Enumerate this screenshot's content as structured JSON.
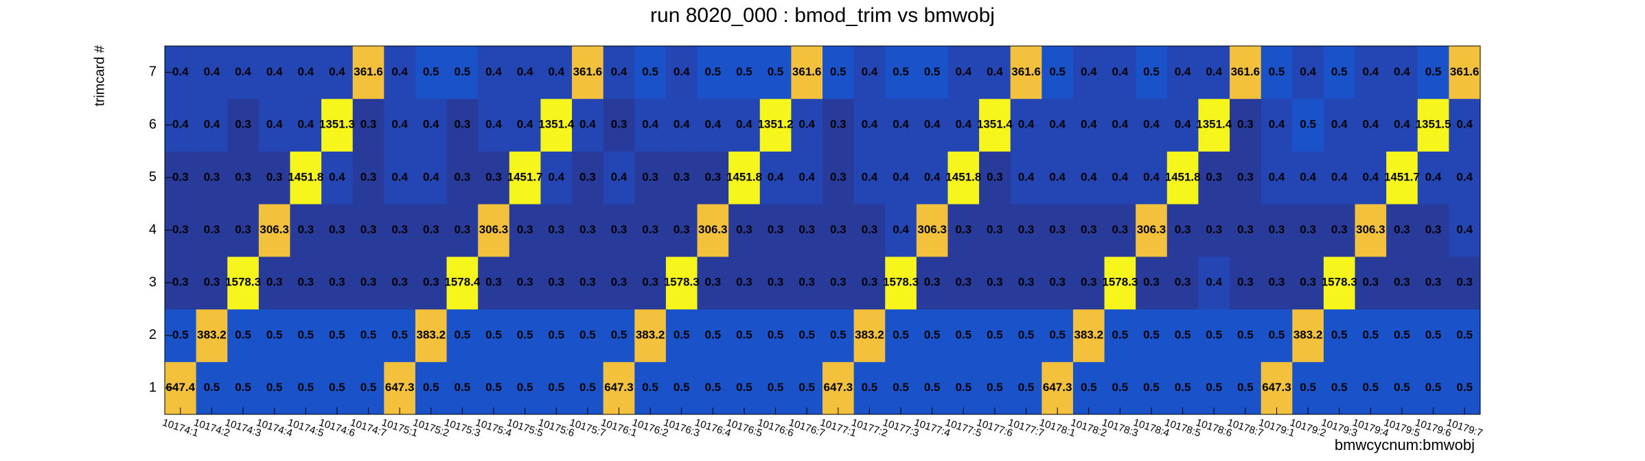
{
  "chart_data": {
    "type": "heatmap",
    "title": "run 8020_000 : bmod_trim vs bmwobj",
    "x_label": "bmwcycnum:bmwobj",
    "y_label": "trimcard #",
    "x_categories": [
      "10174:1",
      "10174:2",
      "10174:3",
      "10174:4",
      "10174:5",
      "10174:6",
      "10174:7",
      "10175:1",
      "10175:2",
      "10175:3",
      "10175:4",
      "10175:5",
      "10175:6",
      "10175:7",
      "10176:1",
      "10176:2",
      "10176:3",
      "10176:4",
      "10176:5",
      "10176:6",
      "10176:7",
      "10177:1",
      "10177:2",
      "10177:3",
      "10177:4",
      "10177:5",
      "10177:6",
      "10177:7",
      "10178:1",
      "10178:2",
      "10178:3",
      "10178:4",
      "10178:5",
      "10178:6",
      "10178:7",
      "10179:1",
      "10179:2",
      "10179:3",
      "10179:4",
      "10179:5",
      "10179:6",
      "10179:7"
    ],
    "y_categories": [
      1,
      2,
      3,
      4,
      5,
      6,
      7
    ],
    "z": [
      [
        647.4,
        0.5,
        0.5,
        0.5,
        0.5,
        0.5,
        0.5,
        647.3,
        0.5,
        0.5,
        0.5,
        0.5,
        0.5,
        0.5,
        647.3,
        0.5,
        0.5,
        0.5,
        0.5,
        0.5,
        0.5,
        647.3,
        0.5,
        0.5,
        0.5,
        0.5,
        0.5,
        0.5,
        647.3,
        0.5,
        0.5,
        0.5,
        0.5,
        0.5,
        0.5,
        647.3,
        0.5,
        0.5,
        0.5,
        0.5,
        0.5,
        0.5
      ],
      [
        0.5,
        383.2,
        0.5,
        0.5,
        0.5,
        0.5,
        0.5,
        0.5,
        383.2,
        0.5,
        0.5,
        0.5,
        0.5,
        0.5,
        0.5,
        383.2,
        0.5,
        0.5,
        0.5,
        0.5,
        0.5,
        0.5,
        383.2,
        0.5,
        0.5,
        0.5,
        0.5,
        0.5,
        0.5,
        383.2,
        0.5,
        0.5,
        0.5,
        0.5,
        0.5,
        0.5,
        383.2,
        0.5,
        0.5,
        0.5,
        0.5,
        0.5
      ],
      [
        0.3,
        0.3,
        1578.3,
        0.3,
        0.3,
        0.3,
        0.3,
        0.3,
        0.3,
        1578.4,
        0.3,
        0.3,
        0.3,
        0.3,
        0.3,
        0.3,
        1578.3,
        0.3,
        0.3,
        0.3,
        0.3,
        0.3,
        0.3,
        1578.3,
        0.3,
        0.3,
        0.3,
        0.3,
        0.3,
        0.3,
        1578.3,
        0.3,
        0.3,
        0.4,
        0.3,
        0.3,
        0.3,
        1578.3,
        0.3,
        0.3,
        0.3,
        0.3
      ],
      [
        0.3,
        0.3,
        0.3,
        306.3,
        0.3,
        0.3,
        0.3,
        0.3,
        0.3,
        0.3,
        306.3,
        0.3,
        0.3,
        0.3,
        0.3,
        0.3,
        0.3,
        306.3,
        0.3,
        0.3,
        0.3,
        0.3,
        0.3,
        0.4,
        306.3,
        0.3,
        0.3,
        0.3,
        0.3,
        0.3,
        0.3,
        306.3,
        0.3,
        0.3,
        0.3,
        0.3,
        0.3,
        0.3,
        306.3,
        0.3,
        0.3,
        0.4
      ],
      [
        0.3,
        0.3,
        0.3,
        0.3,
        1451.8,
        0.4,
        0.3,
        0.4,
        0.4,
        0.3,
        0.3,
        1451.7,
        0.4,
        0.3,
        0.4,
        0.3,
        0.3,
        0.3,
        1451.8,
        0.4,
        0.4,
        0.3,
        0.4,
        0.4,
        0.4,
        1451.8,
        0.3,
        0.4,
        0.4,
        0.4,
        0.4,
        0.4,
        1451.8,
        0.3,
        0.3,
        0.4,
        0.4,
        0.4,
        0.4,
        1451.7,
        0.4,
        0.4
      ],
      [
        0.4,
        0.4,
        0.3,
        0.4,
        0.4,
        1351.3,
        0.3,
        0.4,
        0.4,
        0.3,
        0.4,
        0.4,
        1351.4,
        0.4,
        0.3,
        0.4,
        0.4,
        0.4,
        0.4,
        1351.2,
        0.4,
        0.3,
        0.4,
        0.4,
        0.4,
        0.4,
        1351.4,
        0.4,
        0.4,
        0.4,
        0.4,
        0.4,
        0.4,
        1351.4,
        0.3,
        0.4,
        0.5,
        0.4,
        0.4,
        0.4,
        1351.5,
        0.4
      ],
      [
        0.4,
        0.4,
        0.4,
        0.4,
        0.4,
        0.4,
        361.6,
        0.4,
        0.5,
        0.5,
        0.4,
        0.4,
        0.4,
        361.6,
        0.4,
        0.5,
        0.4,
        0.5,
        0.5,
        0.5,
        361.6,
        0.5,
        0.4,
        0.5,
        0.5,
        0.4,
        0.4,
        361.6,
        0.5,
        0.4,
        0.4,
        0.5,
        0.4,
        0.4,
        361.6,
        0.5,
        0.4,
        0.5,
        0.4,
        0.4,
        0.5,
        361.6
      ]
    ],
    "zlog": true,
    "palette": [
      [
        0,
        "#283b9b"
      ],
      [
        0.025,
        "#2446b4"
      ],
      [
        0.05,
        "#1a52c9"
      ],
      [
        0.5,
        "#20a0a0"
      ],
      [
        0.8,
        "#f3c13c"
      ],
      [
        0.95,
        "#f6f61c"
      ]
    ]
  }
}
